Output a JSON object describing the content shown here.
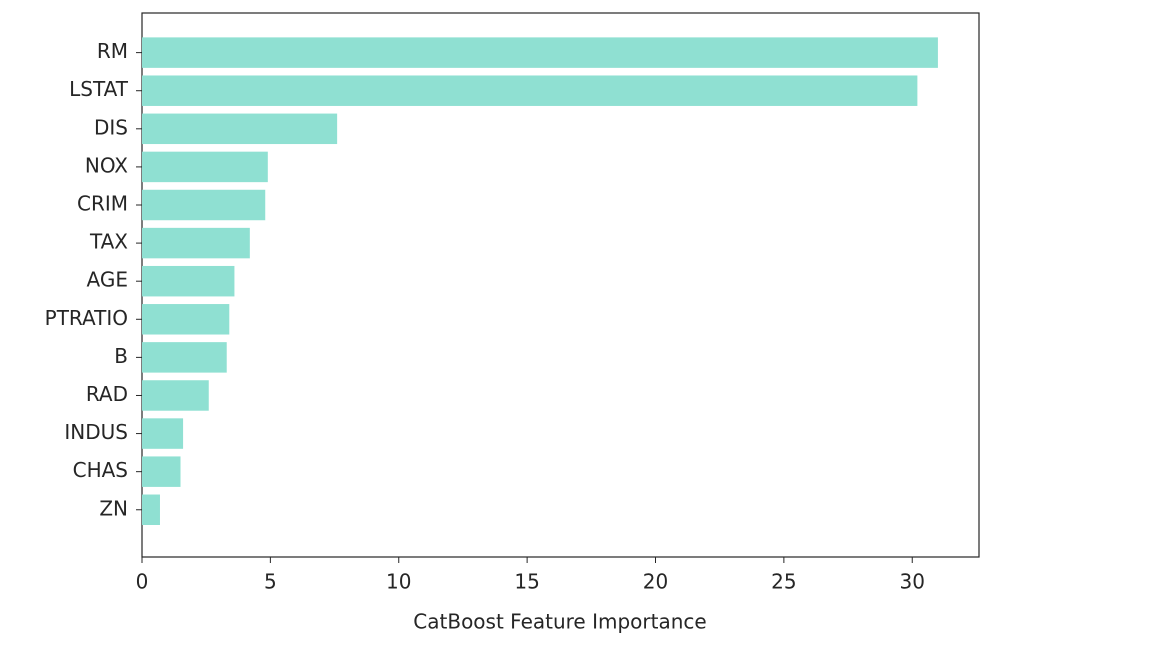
{
  "chart_data": {
    "type": "barh",
    "xlabel": "CatBoost Feature Importance",
    "categories": [
      "RM",
      "LSTAT",
      "DIS",
      "NOX",
      "CRIM",
      "TAX",
      "AGE",
      "PTRATIO",
      "B",
      "RAD",
      "INDUS",
      "CHAS",
      "ZN"
    ],
    "values": [
      31.0,
      30.2,
      7.6,
      4.9,
      4.8,
      4.2,
      3.6,
      3.4,
      3.3,
      2.6,
      1.6,
      1.5,
      0.7
    ],
    "color": "#8fe0d2",
    "xlim": [
      0,
      32.6
    ],
    "xticks": [
      0,
      5,
      10,
      15,
      20,
      25,
      30
    ]
  }
}
